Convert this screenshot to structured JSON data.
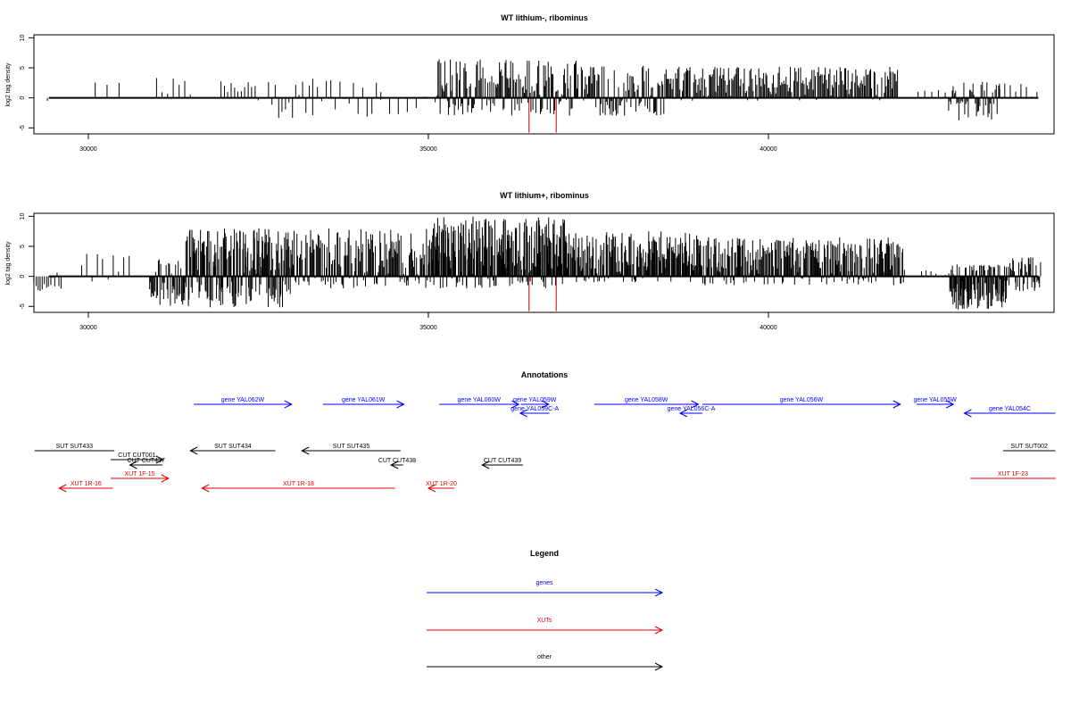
{
  "chart_data": [
    {
      "type": "bar",
      "title": "WT lithium-, ribominus",
      "ylabel": "log2 tag density",
      "xlabel": "",
      "xlim": [
        29200,
        44200
      ],
      "ylim": [
        -6.0,
        10.5
      ],
      "xticks": [
        30000,
        35000,
        40000
      ],
      "xtick_labels": [
        "30000",
        "35000",
        "40000"
      ],
      "yticks": [
        -5,
        0,
        5,
        10
      ],
      "ytick_labels": [
        "-5",
        "0",
        "5",
        "10"
      ],
      "tracks": [
        {
          "name": "coverage",
          "color": "#000000",
          "regions": [
            {
              "from": 29300,
              "to": 29500,
              "n": 1,
              "min": -2,
              "max": 0
            },
            {
              "from": 30100,
              "to": 30450,
              "n": 3,
              "min": 0,
              "max": 3
            },
            {
              "from": 31000,
              "to": 31500,
              "n": 7,
              "min": -2.2,
              "max": 3.5
            },
            {
              "from": 31950,
              "to": 32500,
              "n": 12,
              "min": -0.5,
              "max": 3
            },
            {
              "from": 32650,
              "to": 33300,
              "n": 14,
              "min": -3.5,
              "max": 3.5
            },
            {
              "from": 33300,
              "to": 34300,
              "n": 16,
              "min": -3.2,
              "max": 3
            },
            {
              "from": 34300,
              "to": 34950,
              "n": 6,
              "min": -3,
              "max": 2.5
            },
            {
              "from": 35100,
              "to": 37200,
              "n": 150,
              "min": -3,
              "max": 6.5
            },
            {
              "from": 37250,
              "to": 38600,
              "n": 90,
              "min": -3,
              "max": 5.5
            },
            {
              "from": 38600,
              "to": 41900,
              "n": 200,
              "min": -0.5,
              "max": 5.2
            },
            {
              "from": 42200,
              "to": 42600,
              "n": 5,
              "min": 0,
              "max": 2
            },
            {
              "from": 42650,
              "to": 43400,
              "n": 45,
              "min": -3.8,
              "max": 3
            },
            {
              "from": 43400,
              "to": 43950,
              "n": 8,
              "min": 0,
              "max": 3
            }
          ]
        },
        {
          "name": "highlight",
          "color": "#cc0000",
          "bars": [
            [
              36480,
              -5.8
            ],
            [
              36880,
              -5.8
            ]
          ]
        }
      ]
    },
    {
      "type": "bar",
      "title": "WT lithium+, ribominus",
      "ylabel": "log2 tag density",
      "xlabel": "",
      "xlim": [
        29200,
        44200
      ],
      "ylim": [
        -6.0,
        10.5
      ],
      "xticks": [
        30000,
        35000,
        40000
      ],
      "xtick_labels": [
        "30000",
        "35000",
        "40000"
      ],
      "yticks": [
        -5,
        0,
        5,
        10
      ],
      "ytick_labels": [
        "-5",
        "0",
        "5",
        "10"
      ],
      "tracks": [
        {
          "name": "coverage",
          "color": "#000000",
          "regions": [
            {
              "from": 29200,
              "to": 29600,
              "n": 14,
              "min": -2.5,
              "max": 1.5
            },
            {
              "from": 29900,
              "to": 30600,
              "n": 10,
              "min": -1,
              "max": 4.5
            },
            {
              "from": 30900,
              "to": 31400,
              "n": 40,
              "min": -5,
              "max": 3
            },
            {
              "from": 31400,
              "to": 33000,
              "n": 200,
              "min": -5.2,
              "max": 8
            },
            {
              "from": 33000,
              "to": 35000,
              "n": 150,
              "min": -2,
              "max": 8
            },
            {
              "from": 35000,
              "to": 37000,
              "n": 220,
              "min": -2,
              "max": 10
            },
            {
              "from": 37000,
              "to": 39000,
              "n": 180,
              "min": -1,
              "max": 7.5
            },
            {
              "from": 39000,
              "to": 42000,
              "n": 250,
              "min": -1.5,
              "max": 6.5
            },
            {
              "from": 42250,
              "to": 42600,
              "n": 6,
              "min": -1,
              "max": 1
            },
            {
              "from": 42650,
              "to": 43500,
              "n": 110,
              "min": -5.5,
              "max": 2
            },
            {
              "from": 43500,
              "to": 44000,
              "n": 40,
              "min": -2.5,
              "max": 3.2
            }
          ]
        },
        {
          "name": "highlight",
          "color": "#cc0000",
          "bars": [
            [
              36480,
              -5.8
            ],
            [
              36880,
              -5.8
            ]
          ]
        }
      ]
    }
  ],
  "annotations": {
    "title": "Annotations",
    "features": [
      {
        "label": "gene YAL062W",
        "from": 31550,
        "to": 32990,
        "dir": ">",
        "row": 0,
        "color": "#0000ff"
      },
      {
        "label": "gene YAL061W",
        "from": 33450,
        "to": 34640,
        "dir": ">",
        "row": 0,
        "color": "#0000ff"
      },
      {
        "label": "gene YAL060W",
        "from": 35160,
        "to": 36330,
        "dir": ">",
        "row": 0,
        "color": "#0000ff"
      },
      {
        "label": "gene YAL059W",
        "from": 36360,
        "to": 36770,
        "dir": ">",
        "row": 0,
        "color": "#0000ff"
      },
      {
        "label": "gene YAL059C-A",
        "from": 36350,
        "to": 36780,
        "dir": "<",
        "row": 1,
        "color": "#0000ff"
      },
      {
        "label": "gene YAL058W",
        "from": 37440,
        "to": 38970,
        "dir": ">",
        "row": 0,
        "color": "#0000ff"
      },
      {
        "label": "gene YAL056C-A",
        "from": 38700,
        "to": 39030,
        "dir": "<",
        "row": 1,
        "color": "#0000ff"
      },
      {
        "label": "gene YAL056W",
        "from": 39030,
        "to": 41940,
        "dir": ">",
        "row": 0,
        "color": "#0000ff"
      },
      {
        "label": "gene YAL055W",
        "from": 42180,
        "to": 42720,
        "dir": ">",
        "row": 0,
        "color": "#0000ff"
      },
      {
        "label": "gene YAL054C",
        "from": 42880,
        "to": 44220,
        "dir": "<",
        "row": 1,
        "color": "#0000ff"
      },
      {
        "label": "SUT SUT433",
        "from": 29210,
        "to": 30380,
        "dir": "-",
        "row": 3,
        "color": "#000000"
      },
      {
        "label": "CUT CUT001",
        "from": 30330,
        "to": 31100,
        "dir": ">",
        "row": 4,
        "color": "#000000"
      },
      {
        "label": "CUT CUT437",
        "from": 30610,
        "to": 31090,
        "dir": "<",
        "row": 5,
        "color": "#000000"
      },
      {
        "label": "SUT SUT434",
        "from": 31500,
        "to": 32750,
        "dir": "<",
        "row": 3,
        "color": "#000000"
      },
      {
        "label": "SUT SUT435",
        "from": 33140,
        "to": 34590,
        "dir": "<",
        "row": 3,
        "color": "#000000"
      },
      {
        "label": "CUT CUT438",
        "from": 34450,
        "to": 34630,
        "dir": "<",
        "row": 5,
        "color": "#000000"
      },
      {
        "label": "CUT CUT439",
        "from": 35790,
        "to": 36390,
        "dir": "<",
        "row": 5,
        "color": "#000000"
      },
      {
        "label": "SUT SUT002",
        "from": 43450,
        "to": 44220,
        "dir": "-",
        "row": 3,
        "color": "#000000"
      },
      {
        "label": "XUT 1R-16",
        "from": 29570,
        "to": 30360,
        "dir": "<",
        "row": 7,
        "color": "#e00000"
      },
      {
        "label": "XUT 1F-15",
        "from": 30330,
        "to": 31180,
        "dir": ">",
        "row": 6,
        "color": "#e00000"
      },
      {
        "label": "XUT 1R-18",
        "from": 31670,
        "to": 34510,
        "dir": "<",
        "row": 7,
        "color": "#e00000"
      },
      {
        "label": "XUT 1R-20",
        "from": 35000,
        "to": 35380,
        "dir": "<",
        "row": 7,
        "color": "#e00000"
      },
      {
        "label": "XUT 1F-23",
        "from": 42970,
        "to": 44220,
        "dir": "-",
        "row": 6,
        "color": "#e00000"
      }
    ]
  },
  "legend": {
    "title": "Legend",
    "items": [
      {
        "label": "genes",
        "color": "#0000ff"
      },
      {
        "label": "XUTs",
        "color": "#e00000"
      },
      {
        "label": "other",
        "color": "#000000"
      }
    ]
  }
}
